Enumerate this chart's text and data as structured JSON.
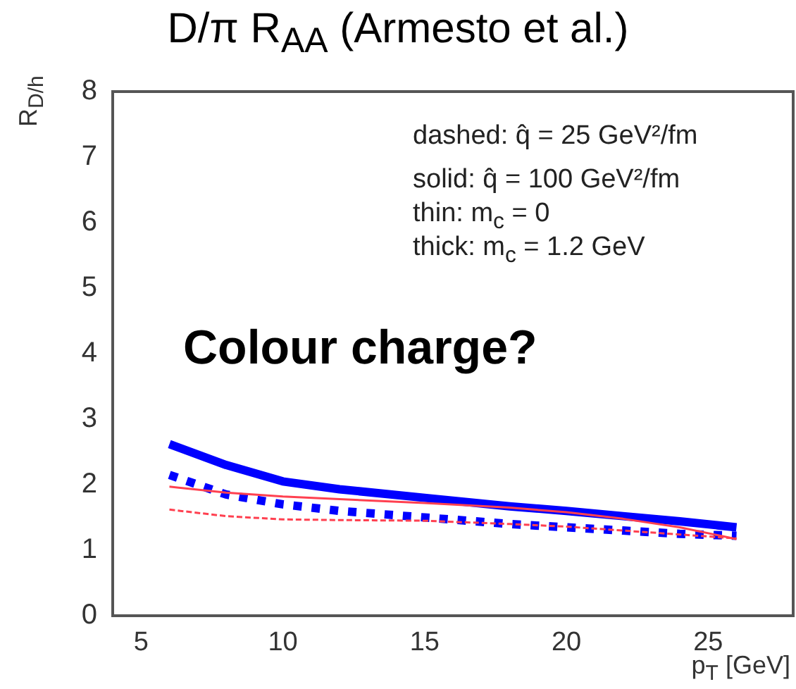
{
  "chart_data": {
    "type": "line",
    "title": "D/π R$_{AA}$ (Armesto et al.)",
    "xlabel": "p$_{T}$ [GeV]",
    "ylabel": "R$_{D/h}$",
    "x": [
      6,
      8,
      10,
      12,
      15,
      18,
      20,
      22,
      24,
      26
    ],
    "series": [
      {
        "color": "#0000ff",
        "line_style": "solid",
        "values": [
          2.62,
          2.3,
          2.05,
          1.93,
          1.8,
          1.67,
          1.6,
          1.52,
          1.44,
          1.35
        ]
      },
      {
        "color": "#0000ff",
        "line_style": "dashed",
        "values": [
          2.15,
          1.85,
          1.7,
          1.6,
          1.5,
          1.4,
          1.35,
          1.3,
          1.25,
          1.22
        ]
      },
      {
        "color": "#ff4050",
        "line_style": "solid",
        "values": [
          1.97,
          1.88,
          1.82,
          1.78,
          1.72,
          1.65,
          1.58,
          1.48,
          1.35,
          1.17
        ]
      },
      {
        "color": "#ff4050",
        "line_style": "dashed",
        "values": [
          1.62,
          1.52,
          1.47,
          1.46,
          1.45,
          1.4,
          1.36,
          1.3,
          1.24,
          1.18
        ]
      }
    ],
    "xlim": [
      4,
      28
    ],
    "xticks": [
      5,
      10,
      15,
      20,
      25
    ],
    "ylim": [
      0,
      8
    ],
    "yticks": [
      0,
      1,
      2,
      3,
      4,
      5,
      6,
      7,
      8
    ],
    "grid": false,
    "legend": false,
    "marker": "none",
    "annotations": [
      "dashed: q̂ = 25 GeV²/fm",
      "solid: q̂ = 100 GeV²/fm",
      "thin: m$_{c}$ = 0",
      "thick: m$_{c}$ = 1.2 GeV",
      "Colour charge?"
    ]
  }
}
